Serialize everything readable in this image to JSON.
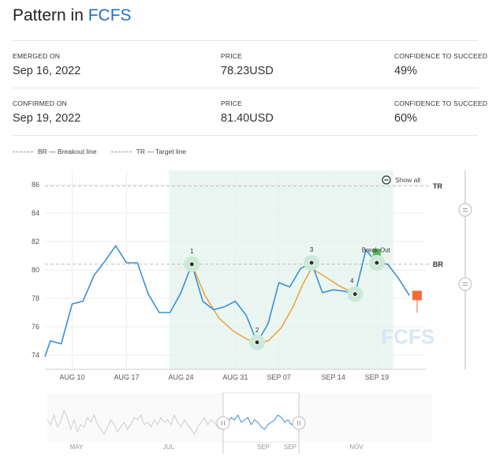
{
  "header": {
    "title_prefix": "Pattern in",
    "symbol": "FCFS"
  },
  "stats": [
    {
      "label": "EMERGED ON",
      "value": "Sep 16, 2022"
    },
    {
      "label": "PRICE",
      "value": "78.23USD"
    },
    {
      "label": "CONFIDENCE TO SUCCEED",
      "value": "49%"
    },
    {
      "label": "CONFIRMED ON",
      "value": "Sep 19, 2022"
    },
    {
      "label": "PRICE",
      "value": "81.40USD"
    },
    {
      "label": "CONFIDENCE TO SUCCEED",
      "value": "60%"
    }
  ],
  "legend": {
    "br": "BR — Breakout line",
    "tr": "TR — Target line"
  },
  "controls": {
    "show_all": "Show all"
  },
  "colors": {
    "price": "#3a8fd6",
    "pattern": "#f0a03a",
    "zone": "#eaf6f1",
    "marker": "#cbe9d8",
    "breakout": "#5cb85c",
    "target_box": "#f26b3a",
    "symbol": "#1f6fc8",
    "watermark": "#d7e7f5"
  },
  "chart_data": {
    "type": "line",
    "title": "",
    "watermark": "FCFS",
    "ylim": [
      73,
      87
    ],
    "yticks": [
      74,
      76,
      78,
      80,
      82,
      84,
      86
    ],
    "xlim": [
      0,
      35
    ],
    "xtick_labels": [
      "AUG 10",
      "AUG 17",
      "AUG 24",
      "AUG 31",
      "SEP 07",
      "SEP 14",
      "SEP 19"
    ],
    "xtick_positions": [
      2.5,
      7.5,
      12.5,
      17.5,
      21.5,
      26.5,
      30.5
    ],
    "pattern_zone": [
      11.4,
      32
    ],
    "lines": {
      "TR": 85.9,
      "BR": 80.4,
      "TR_label": "TR",
      "BR_label": "BR"
    },
    "series": [
      {
        "x": [
          0,
          0.5,
          1.5,
          2.5,
          3.5,
          4.5,
          5.5,
          6.5,
          7.5,
          8.5,
          9.5,
          10.5,
          11.5,
          12.5,
          13.5,
          14.5,
          15.5,
          16.5,
          17.5,
          18.5,
          19.5,
          20.5,
          21.5,
          22.5,
          23.5,
          24.5,
          25.5,
          26.5,
          27.5,
          28.5,
          29.5,
          30.5,
          31.5,
          32.5,
          33.5
        ],
        "y": [
          73.9,
          75.0,
          74.8,
          77.6,
          77.8,
          79.6,
          80.6,
          81.7,
          80.5,
          80.5,
          78.3,
          77.0,
          77.0,
          78.4,
          80.4,
          77.8,
          77.2,
          77.4,
          77.8,
          76.8,
          74.9,
          76.2,
          79.1,
          78.8,
          80.1,
          80.5,
          78.4,
          78.6,
          78.5,
          78.3,
          81.4,
          80.5,
          80.4,
          79.4,
          78.2
        ]
      }
    ],
    "pattern_points": [
      {
        "label": "1",
        "x": 13.5,
        "y": 80.4
      },
      {
        "label": "2",
        "x": 19.5,
        "y": 74.9
      },
      {
        "label": "3",
        "x": 24.5,
        "y": 80.5
      },
      {
        "label": "4",
        "x": 28.5,
        "y": 78.3
      },
      {
        "label": "",
        "x": 30.5,
        "y": 80.5
      }
    ],
    "pattern_curve": [
      [
        13.5,
        80.4
      ],
      [
        14.7,
        78.2
      ],
      [
        16.0,
        76.6
      ],
      [
        17.3,
        75.7
      ],
      [
        18.6,
        75.1
      ],
      [
        19.5,
        74.9
      ],
      [
        20.5,
        75.0
      ],
      [
        21.7,
        75.9
      ],
      [
        22.8,
        77.4
      ],
      [
        23.7,
        79.0
      ],
      [
        24.5,
        80.1
      ],
      [
        25.6,
        79.6
      ],
      [
        27.0,
        78.9
      ],
      [
        28.5,
        78.3
      ]
    ],
    "breakout": {
      "label": "Break Out",
      "x": 30.5,
      "y": 81.2
    },
    "target_box": {
      "x": 34.2,
      "y": 78.2
    },
    "navigator": {
      "labels": [
        "MAY",
        "JUL",
        "SEP",
        "SEP",
        "NOV"
      ],
      "values": [
        82,
        80,
        84,
        79,
        81,
        86,
        83,
        78,
        82,
        77,
        80,
        79,
        83,
        81,
        84,
        80,
        78,
        76,
        79,
        82,
        80,
        77,
        79,
        81,
        78,
        80,
        83,
        82,
        84,
        80,
        81,
        79,
        82,
        80,
        83,
        81,
        82,
        80,
        84,
        81,
        79,
        82,
        80,
        78,
        76,
        79,
        81,
        83,
        80,
        82,
        81,
        79,
        82,
        80,
        81,
        83,
        82,
        84,
        81,
        82,
        83,
        80,
        82,
        81,
        79,
        78,
        80,
        81,
        82,
        84,
        83,
        81,
        82,
        80,
        81,
        79
      ]
    }
  }
}
